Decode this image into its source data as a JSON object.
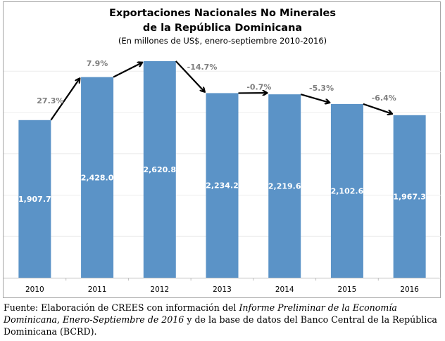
{
  "chart_data": {
    "type": "bar",
    "title": "Exportaciones Nacionales No Minerales",
    "title_line2": "de la República Dominicana",
    "subtitle": "(En millones de US$, enero-septiembre 2010-2016)",
    "categories": [
      "2010",
      "2011",
      "2012",
      "2013",
      "2014",
      "2015",
      "2016"
    ],
    "values": [
      1907.7,
      2428.0,
      2620.8,
      2234.2,
      2219.6,
      2102.6,
      1967.3
    ],
    "value_labels": [
      "1,907.7",
      "2,428.0",
      "2,620.8",
      "2,234.2",
      "2,219.6",
      "2,102.6",
      "1,967.3"
    ],
    "growth_labels": [
      "27.3%",
      "7.9%",
      "-14.7%",
      "-0.7%",
      "-5.3%",
      "-6.4%"
    ],
    "xlabel": "",
    "ylabel": "",
    "ylim": [
      0,
      2620.8
    ],
    "grid": true,
    "legend": "none",
    "colors": {
      "bar": "#5b93c7",
      "arrow": "#000000",
      "growth_label": "#7f7f7f",
      "value_label": "#ffffff"
    }
  },
  "caption": {
    "prefix": "Fuente: Elaboración de CREES con información del ",
    "italic": "Informe Preliminar de la Economía Dominicana, Enero-Septiembre de 2016",
    "suffix": " y de la base de datos del Banco Central de la República Dominicana (BCRD)."
  }
}
